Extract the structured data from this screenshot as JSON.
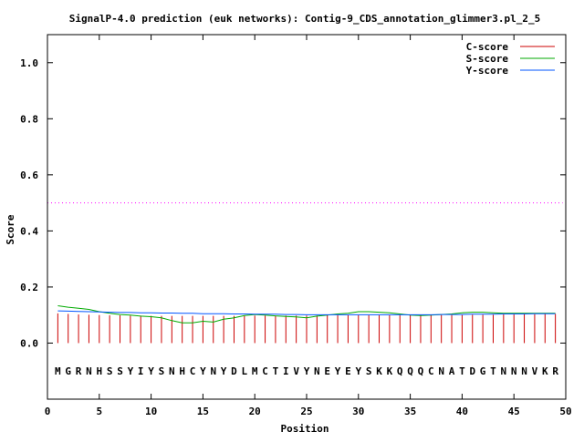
{
  "chart_data": {
    "type": "line",
    "title": "SignalP-4.0 prediction (euk networks): Contig-9_CDS_annotation_glimmer3.pl_2_5",
    "xlabel": "Position",
    "ylabel": "Score",
    "xlim": [
      0,
      50
    ],
    "ylim": [
      -0.2,
      1.1
    ],
    "xticks": [
      0,
      5,
      10,
      15,
      20,
      25,
      30,
      35,
      40,
      45,
      50
    ],
    "yticks": [
      0.0,
      0.2,
      0.4,
      0.6,
      0.8,
      1.0
    ],
    "ytick_labels": [
      "0.0",
      "0.2",
      "0.4",
      "0.6",
      "0.8",
      "1.0"
    ],
    "grid": false,
    "legend_position": "top-right",
    "threshold": 0.5,
    "threshold_color": "#ff00ff",
    "sequence_y": -0.1,
    "sequence": [
      "M",
      "G",
      "R",
      "N",
      "H",
      "S",
      "S",
      "Y",
      "I",
      "Y",
      "S",
      "N",
      "H",
      "C",
      "Y",
      "N",
      "Y",
      "D",
      "L",
      "M",
      "C",
      "T",
      "I",
      "V",
      "Y",
      "N",
      "E",
      "Y",
      "E",
      "Y",
      "S",
      "K",
      "K",
      "Q",
      "Q",
      "Q",
      "C",
      "N",
      "A",
      "T",
      "D",
      "G",
      "T",
      "N",
      "N",
      "N",
      "V",
      "K",
      "R"
    ],
    "positions": [
      1,
      2,
      3,
      4,
      5,
      6,
      7,
      8,
      9,
      10,
      11,
      12,
      13,
      14,
      15,
      16,
      17,
      18,
      19,
      20,
      21,
      22,
      23,
      24,
      25,
      26,
      27,
      28,
      29,
      30,
      31,
      32,
      33,
      34,
      35,
      36,
      37,
      38,
      39,
      40,
      41,
      42,
      43,
      44,
      45,
      46,
      47,
      48,
      49
    ],
    "series": [
      {
        "name": "C-score",
        "style": "impulse",
        "color": "#cc0000",
        "values": [
          0.106,
          0.104,
          0.102,
          0.101,
          0.1,
          0.099,
          0.099,
          0.098,
          0.098,
          0.097,
          0.097,
          0.097,
          0.097,
          0.097,
          0.097,
          0.097,
          0.097,
          0.097,
          0.098,
          0.098,
          0.098,
          0.098,
          0.098,
          0.098,
          0.098,
          0.098,
          0.099,
          0.099,
          0.099,
          0.099,
          0.099,
          0.099,
          0.099,
          0.099,
          0.1,
          0.1,
          0.1,
          0.1,
          0.1,
          0.1,
          0.101,
          0.101,
          0.101,
          0.102,
          0.102,
          0.103,
          0.103,
          0.104,
          0.104
        ]
      },
      {
        "name": "S-score",
        "style": "line",
        "color": "#00aa00",
        "values": [
          0.133,
          0.128,
          0.124,
          0.12,
          0.112,
          0.106,
          0.102,
          0.1,
          0.096,
          0.094,
          0.09,
          0.08,
          0.072,
          0.072,
          0.078,
          0.075,
          0.085,
          0.09,
          0.098,
          0.102,
          0.1,
          0.097,
          0.095,
          0.093,
          0.09,
          0.096,
          0.1,
          0.104,
          0.106,
          0.112,
          0.112,
          0.11,
          0.108,
          0.104,
          0.1,
          0.098,
          0.1,
          0.102,
          0.104,
          0.108,
          0.11,
          0.11,
          0.108,
          0.106,
          0.106,
          0.106,
          0.106,
          0.106,
          0.106
        ]
      },
      {
        "name": "Y-score",
        "style": "line",
        "color": "#0055ff",
        "values": [
          0.115,
          0.114,
          0.113,
          0.112,
          0.111,
          0.11,
          0.109,
          0.109,
          0.108,
          0.108,
          0.107,
          0.107,
          0.106,
          0.106,
          0.105,
          0.105,
          0.105,
          0.104,
          0.104,
          0.103,
          0.103,
          0.103,
          0.102,
          0.102,
          0.101,
          0.101,
          0.101,
          0.101,
          0.101,
          0.101,
          0.101,
          0.101,
          0.101,
          0.101,
          0.101,
          0.101,
          0.101,
          0.102,
          0.102,
          0.102,
          0.103,
          0.103,
          0.103,
          0.104,
          0.104,
          0.104,
          0.105,
          0.105,
          0.105
        ]
      }
    ]
  }
}
